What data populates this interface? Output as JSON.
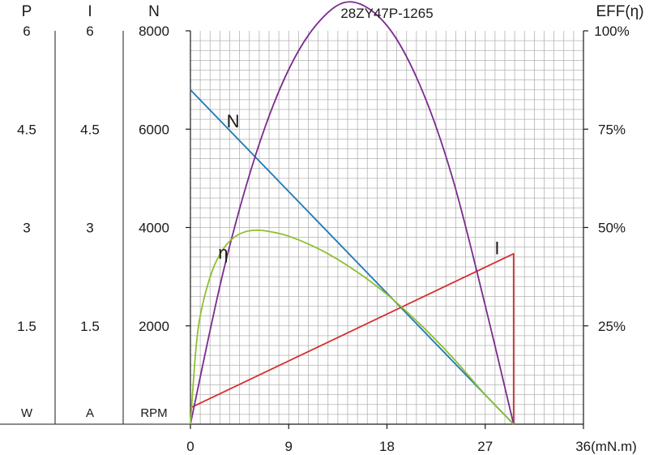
{
  "chart_data": {
    "type": "line",
    "title": "28ZY47P-1265",
    "x_axis": {
      "ticks": [
        "0",
        "9",
        "18",
        "27",
        "36(mN.m)"
      ],
      "range": [
        0,
        36
      ],
      "unit": "mN.m"
    },
    "left_axes": [
      {
        "header": "P",
        "unit": "W",
        "ticks": [
          "6",
          "4.5",
          "3",
          "1.5"
        ],
        "range": [
          0,
          6
        ]
      },
      {
        "header": "I",
        "unit": "A",
        "ticks": [
          "6",
          "4.5",
          "3",
          "1.5"
        ],
        "range": [
          0,
          6
        ]
      },
      {
        "header": "N",
        "unit": "RPM",
        "ticks": [
          "8000",
          "6000",
          "4000",
          "2000"
        ],
        "range": [
          0,
          8000
        ]
      }
    ],
    "right_axis": {
      "header": "EFF(η)",
      "ticks": [
        "100%",
        "75%",
        "50%",
        "25%"
      ],
      "range": [
        0,
        100
      ]
    },
    "grid": true,
    "series": [
      {
        "name": "N",
        "axis": "N",
        "color": "#1f78b4",
        "x": [
          0,
          29.6
        ],
        "y": [
          6800,
          0
        ]
      },
      {
        "name": "I",
        "axis": "I",
        "color": "#d62f2f",
        "x": [
          0,
          29.6,
          29.6
        ],
        "y": [
          0.25,
          2.6,
          0
        ]
      },
      {
        "name": "P",
        "axis": "P",
        "color": "#7b2a8e",
        "x": [
          0,
          3,
          6,
          9,
          12,
          14.8,
          18,
          21,
          24,
          27,
          29.6
        ],
        "y": [
          0,
          2.32,
          4.12,
          5.41,
          6.18,
          6.44,
          6.08,
          5.18,
          3.76,
          1.81,
          0
        ]
      },
      {
        "name": "η",
        "axis": "EFF",
        "color": "#8dbf2e",
        "x": [
          0,
          0.5,
          1,
          2,
          3,
          4,
          5,
          6,
          7,
          9,
          12,
          15,
          18,
          21,
          24,
          27,
          29.6
        ],
        "y": [
          0,
          19,
          29,
          39,
          44.5,
          47.5,
          48.9,
          49.3,
          49.1,
          47.8,
          44.2,
          39.2,
          33.0,
          25.5,
          17.0,
          7.5,
          0
        ]
      }
    ]
  }
}
